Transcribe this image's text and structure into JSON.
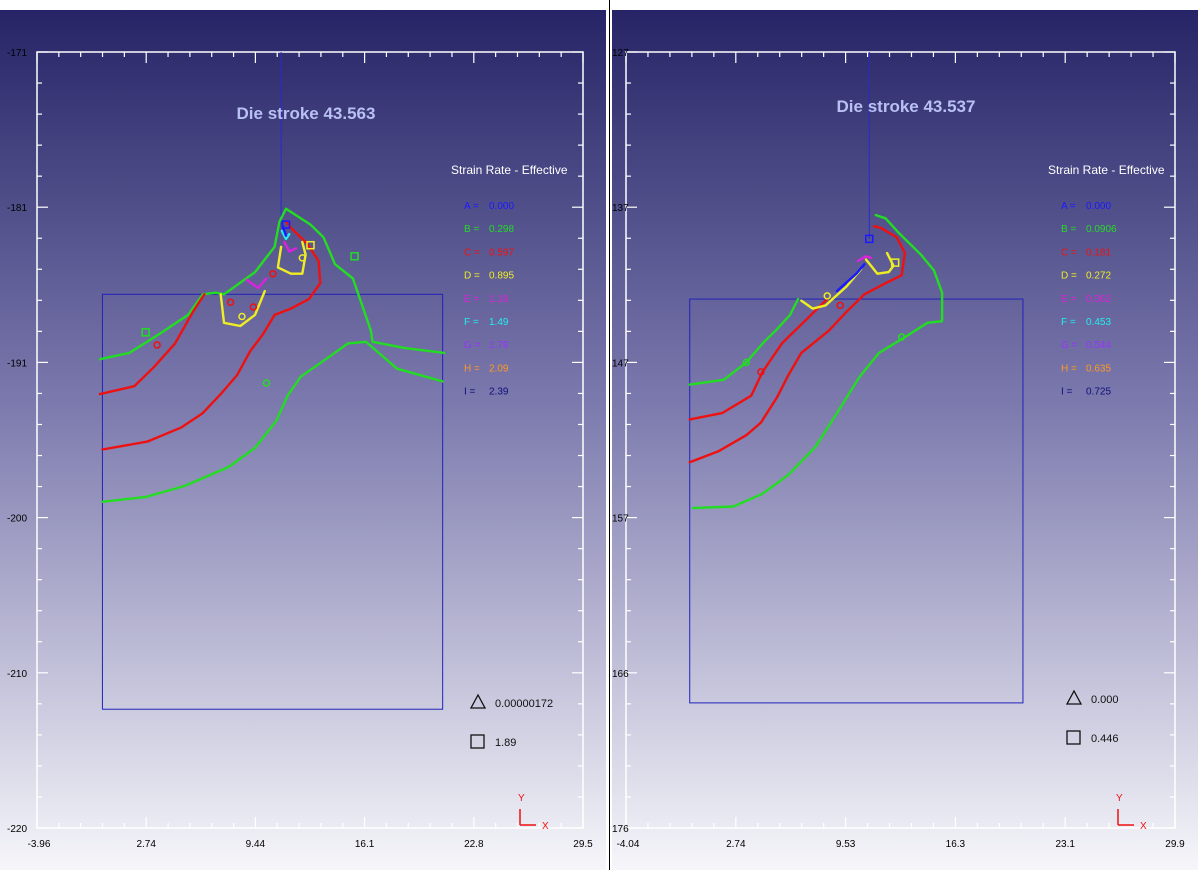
{
  "chart_data": [
    {
      "type": "contour",
      "title": "Die stroke 43.563",
      "legend_title": "Strain Rate - Effective",
      "xticks": [
        "-3.96",
        "2.74",
        "9.44",
        "16.1",
        "22.8",
        "29.5"
      ],
      "yticks": [
        "-171",
        "-181",
        "-191",
        "-200",
        "-210",
        "-220"
      ],
      "xlim": [
        -3.96,
        29.5
      ],
      "ylim": [
        -220,
        -171
      ],
      "legend": [
        {
          "key": "A =",
          "value": "0.000",
          "color": "#1a1aff"
        },
        {
          "key": "B =",
          "value": "0.298",
          "color": "#22dd22"
        },
        {
          "key": "C =",
          "value": "0.597",
          "color": "#ee1111"
        },
        {
          "key": "D =",
          "value": "0.895",
          "color": "#eeee22"
        },
        {
          "key": "E =",
          "value": "1.19",
          "color": "#dd22dd"
        },
        {
          "key": "F =",
          "value": "1.49",
          "color": "#22eeee"
        },
        {
          "key": "G =",
          "value": "1.79",
          "color": "#9933ff"
        },
        {
          "key": "H =",
          "value": "2.09",
          "color": "#ff9922"
        },
        {
          "key": "I =",
          "value": "2.39",
          "color": "#10107a"
        }
      ],
      "min_marker": {
        "symbol": "triangle",
        "value": "0.00000172"
      },
      "max_marker": {
        "symbol": "square",
        "value": "1.89"
      },
      "axis_labels": {
        "x": "X",
        "y": "Y"
      },
      "workpiece": {
        "x": [
          0.05,
          20.9
        ],
        "y": [
          -186.3,
          -212.5
        ]
      },
      "die_x": 11.0,
      "contours": [
        {
          "level": "B",
          "color": "#22dd22",
          "points": [
            [
              -0.1,
              -190.4
            ],
            [
              1.7,
              -190.0
            ],
            [
              3.7,
              -188.7
            ],
            [
              5.3,
              -187.6
            ],
            [
              6.2,
              -186.3
            ],
            [
              7.0,
              -186.2
            ],
            [
              7.5,
              -186.3
            ],
            [
              9.4,
              -184.9
            ],
            [
              10.6,
              -183.3
            ],
            [
              10.9,
              -181.7
            ],
            [
              11.3,
              -180.9
            ],
            [
              12.8,
              -181.9
            ],
            [
              13.6,
              -182.7
            ],
            [
              14.3,
              -184.4
            ],
            [
              15.4,
              -185.3
            ],
            [
              15.9,
              -186.8
            ],
            [
              16.5,
              -188.6
            ],
            [
              16.6,
              -189.3
            ],
            [
              18.6,
              -189.7
            ],
            [
              21.0,
              -190.0
            ]
          ]
        },
        {
          "level": "B",
          "color": "#22dd22",
          "points": [
            [
              0.05,
              -199.4
            ],
            [
              2.7,
              -199.1
            ],
            [
              5.1,
              -198.4
            ],
            [
              7.8,
              -197.2
            ],
            [
              9.4,
              -196.0
            ],
            [
              10.7,
              -194.3
            ],
            [
              11.4,
              -192.7
            ],
            [
              12.2,
              -191.5
            ],
            [
              13.6,
              -190.5
            ],
            [
              15.1,
              -189.4
            ],
            [
              16.2,
              -189.3
            ],
            [
              18.1,
              -191.0
            ],
            [
              20.9,
              -191.8
            ]
          ]
        },
        {
          "level": "C",
          "color": "#ee1111",
          "points": [
            [
              -0.1,
              -192.6
            ],
            [
              2.0,
              -192.1
            ],
            [
              3.2,
              -190.9
            ],
            [
              4.5,
              -189.4
            ],
            [
              5.6,
              -187.4
            ],
            [
              6.3,
              -186.3
            ]
          ]
        },
        {
          "level": "C",
          "color": "#ee1111",
          "points": [
            [
              0.05,
              -196.1
            ],
            [
              2.8,
              -195.6
            ],
            [
              4.9,
              -194.7
            ],
            [
              6.2,
              -193.8
            ],
            [
              7.3,
              -192.6
            ],
            [
              8.3,
              -191.4
            ],
            [
              9.1,
              -189.9
            ],
            [
              9.9,
              -188.8
            ],
            [
              10.6,
              -187.6
            ],
            [
              11.6,
              -187.2
            ],
            [
              12.7,
              -186.6
            ],
            [
              13.4,
              -185.6
            ],
            [
              13.3,
              -184.2
            ],
            [
              12.6,
              -183.1
            ],
            [
              11.6,
              -182.1
            ],
            [
              11.3,
              -181.7
            ]
          ]
        },
        {
          "level": "D",
          "color": "#eeee22",
          "points": [
            [
              7.3,
              -186.3
            ],
            [
              7.5,
              -188.1
            ],
            [
              8.5,
              -188.3
            ],
            [
              9.4,
              -187.6
            ],
            [
              10.0,
              -186.1
            ]
          ]
        },
        {
          "level": "D",
          "color": "#eeee22",
          "points": [
            [
              11.0,
              -183.3
            ],
            [
              10.8,
              -184.6
            ],
            [
              11.6,
              -185.0
            ],
            [
              12.3,
              -185.0
            ],
            [
              12.5,
              -183.8
            ],
            [
              12.3,
              -183.0
            ]
          ]
        },
        {
          "level": "E",
          "color": "#dd22dd",
          "points": [
            [
              8.9,
              -185.4
            ],
            [
              9.6,
              -185.9
            ],
            [
              10.1,
              -185.3
            ]
          ]
        },
        {
          "level": "E",
          "color": "#dd22dd",
          "points": [
            [
              11.2,
              -183.0
            ],
            [
              11.5,
              -183.6
            ],
            [
              11.9,
              -183.4
            ]
          ]
        },
        {
          "level": "F",
          "color": "#22eeee",
          "points": [
            [
              11.05,
              -182.3
            ],
            [
              11.3,
              -182.8
            ],
            [
              11.5,
              -182.5
            ]
          ]
        },
        {
          "level": "A",
          "color": "#1a1aff",
          "points": [
            [
              11.1,
              -182.0
            ],
            [
              11.3,
              -182.6
            ]
          ]
        }
      ],
      "markers": [
        {
          "x": 11.3,
          "y": -181.9,
          "symbol": "square",
          "color": "#1a1aff"
        },
        {
          "x": 12.8,
          "y": -183.2,
          "symbol": "square",
          "color": "#eeee22"
        },
        {
          "x": 12.3,
          "y": -184.0,
          "symbol": "circle",
          "color": "#eeee22"
        },
        {
          "x": 8.6,
          "y": -187.7,
          "symbol": "circle",
          "color": "#eeee22"
        },
        {
          "x": 7.9,
          "y": -186.8,
          "symbol": "circle",
          "color": "#ee1111"
        },
        {
          "x": 9.3,
          "y": -187.1,
          "symbol": "circle",
          "color": "#ee1111"
        },
        {
          "x": 3.4,
          "y": -189.5,
          "symbol": "circle",
          "color": "#ee1111"
        },
        {
          "x": 2.7,
          "y": -188.7,
          "symbol": "square",
          "color": "#22dd22"
        },
        {
          "x": 15.5,
          "y": -183.9,
          "symbol": "square",
          "color": "#22dd22"
        },
        {
          "x": 10.1,
          "y": -191.9,
          "symbol": "circle",
          "color": "#22dd22"
        },
        {
          "x": 10.5,
          "y": -185.0,
          "symbol": "circle",
          "color": "#ee1111"
        }
      ]
    },
    {
      "type": "contour",
      "title": "Die stroke 43.537",
      "legend_title": "Strain Rate - Effective",
      "xticks": [
        "-4.04",
        "2.74",
        "9.53",
        "16.3",
        "23.1",
        "29.9"
      ],
      "yticks": [
        "127",
        "137",
        "147",
        "157",
        "166",
        "176"
      ],
      "xlim": [
        -4.04,
        29.9
      ],
      "ylim": [
        176,
        127
      ],
      "legend": [
        {
          "key": "A =",
          "value": "0.000",
          "color": "#1a1aff"
        },
        {
          "key": "B =",
          "value": "0.0906",
          "color": "#22dd22"
        },
        {
          "key": "C =",
          "value": "0.181",
          "color": "#ee1111"
        },
        {
          "key": "D =",
          "value": "0.272",
          "color": "#eeee22"
        },
        {
          "key": "E =",
          "value": "0.362",
          "color": "#dd22dd"
        },
        {
          "key": "F =",
          "value": "0.453",
          "color": "#22eeee"
        },
        {
          "key": "G =",
          "value": "0.544",
          "color": "#9933ff"
        },
        {
          "key": "H =",
          "value": "0.635",
          "color": "#ff9922"
        },
        {
          "key": "I =",
          "value": "0.725",
          "color": "#10107a"
        }
      ],
      "min_marker": {
        "symbol": "triangle",
        "value": "0.000"
      },
      "max_marker": {
        "symbol": "square",
        "value": "0.446"
      },
      "axis_labels": {
        "x": "X",
        "y": "Y"
      },
      "workpiece": {
        "x": [
          -0.1,
          20.5
        ],
        "y": [
          142.6,
          168.1
        ]
      },
      "die_x": 11.0,
      "contours": [
        {
          "level": "B",
          "color": "#22dd22",
          "points": [
            [
              -0.1,
              148.0
            ],
            [
              2.0,
              147.7
            ],
            [
              3.4,
              146.6
            ],
            [
              4.5,
              145.3
            ],
            [
              5.3,
              144.5
            ],
            [
              6.1,
              143.6
            ],
            [
              6.6,
              142.6
            ]
          ]
        },
        {
          "level": "B",
          "color": "#22dd22",
          "points": [
            [
              0.1,
              155.8
            ],
            [
              2.6,
              155.7
            ],
            [
              4.4,
              154.9
            ],
            [
              6.0,
              153.7
            ],
            [
              7.7,
              151.9
            ],
            [
              9.0,
              149.8
            ],
            [
              10.4,
              147.5
            ],
            [
              11.6,
              146.0
            ],
            [
              13.2,
              145.0
            ],
            [
              14.6,
              144.1
            ],
            [
              15.5,
              144.0
            ],
            [
              15.5,
              142.2
            ],
            [
              15.0,
              140.8
            ],
            [
              14.2,
              139.8
            ],
            [
              12.8,
              138.4
            ],
            [
              12.0,
              137.5
            ],
            [
              11.4,
              137.3
            ]
          ]
        },
        {
          "level": "C",
          "color": "#ee1111",
          "points": [
            [
              -0.1,
              150.2
            ],
            [
              1.9,
              149.8
            ],
            [
              3.7,
              148.7
            ],
            [
              4.4,
              147.2
            ],
            [
              5.6,
              145.4
            ],
            [
              7.2,
              143.8
            ],
            [
              8.4,
              142.6
            ]
          ]
        },
        {
          "level": "C",
          "color": "#ee1111",
          "points": [
            [
              -0.1,
              152.9
            ],
            [
              1.7,
              152.2
            ],
            [
              3.4,
              151.2
            ],
            [
              4.3,
              150.4
            ],
            [
              5.3,
              148.8
            ],
            [
              6.0,
              147.4
            ],
            [
              6.8,
              146.0
            ],
            [
              8.5,
              144.6
            ],
            [
              9.6,
              143.4
            ],
            [
              10.7,
              142.3
            ],
            [
              12.0,
              141.6
            ],
            [
              13.0,
              141.1
            ],
            [
              13.2,
              139.7
            ],
            [
              12.7,
              138.7
            ],
            [
              11.7,
              138.1
            ],
            [
              11.3,
              138.0
            ]
          ]
        },
        {
          "level": "D",
          "color": "#eeee22",
          "points": [
            [
              6.8,
              142.7
            ],
            [
              7.5,
              143.2
            ],
            [
              8.3,
              143.0
            ],
            [
              9.6,
              141.8
            ],
            [
              10.5,
              140.7
            ]
          ]
        },
        {
          "level": "D",
          "color": "#eeee22",
          "points": [
            [
              10.8,
              140.1
            ],
            [
              11.5,
              141.0
            ],
            [
              12.2,
              140.9
            ],
            [
              12.5,
              140.5
            ],
            [
              12.1,
              139.7
            ]
          ]
        },
        {
          "level": "E",
          "color": "#dd22dd",
          "points": [
            [
              10.3,
              140.2
            ],
            [
              10.8,
              139.9
            ],
            [
              11.1,
              140.0
            ]
          ]
        },
        {
          "level": "A",
          "color": "#1a1aff",
          "points": [
            [
              9.0,
              142.1
            ],
            [
              10.2,
              141.0
            ],
            [
              10.7,
              140.4
            ]
          ]
        }
      ],
      "markers": [
        {
          "x": 11.0,
          "y": 138.8,
          "symbol": "square",
          "color": "#1a1aff"
        },
        {
          "x": 12.6,
          "y": 140.3,
          "symbol": "square",
          "color": "#eeee22"
        },
        {
          "x": 8.4,
          "y": 142.4,
          "symbol": "circle",
          "color": "#eeee22"
        },
        {
          "x": 9.2,
          "y": 143.0,
          "symbol": "circle",
          "color": "#ee1111"
        },
        {
          "x": 4.3,
          "y": 147.2,
          "symbol": "circle",
          "color": "#ee1111"
        },
        {
          "x": 3.4,
          "y": 146.6,
          "symbol": "circle",
          "color": "#22dd22"
        },
        {
          "x": 13.0,
          "y": 145.0,
          "symbol": "circle",
          "color": "#22dd22"
        }
      ]
    }
  ]
}
